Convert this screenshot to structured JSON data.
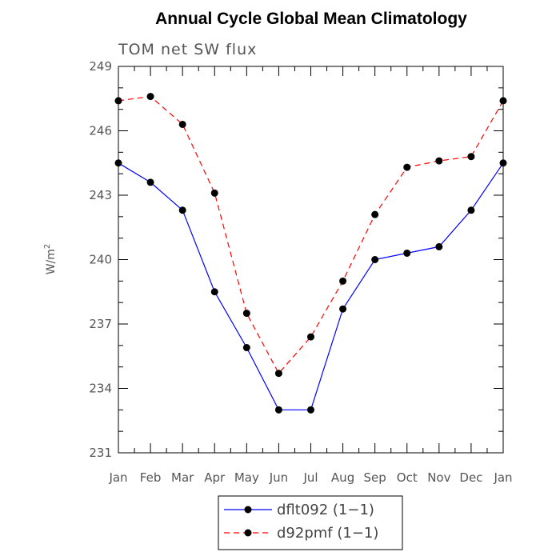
{
  "chart_data": {
    "type": "line",
    "title": "Annual Cycle Global Mean Climatology",
    "subtitle": "TOM net SW flux",
    "ylabel": "W/m",
    "ylabel_superscript": "2",
    "xlabel": "",
    "categories": [
      "Jan",
      "Feb",
      "Mar",
      "Apr",
      "May",
      "Jun",
      "Jul",
      "Aug",
      "Sep",
      "Oct",
      "Nov",
      "Dec",
      "Jan"
    ],
    "ylim": [
      231,
      249
    ],
    "yticks": [
      "231",
      "234",
      "237",
      "240",
      "243",
      "246",
      "249"
    ],
    "legend_position": "bottom",
    "series": [
      {
        "name": "dflt092 (1−1)",
        "color": "#0000ff",
        "dash": "solid",
        "values": [
          244.5,
          243.6,
          242.3,
          238.5,
          235.9,
          233.0,
          233.0,
          237.7,
          240.0,
          240.3,
          240.6,
          242.3,
          244.5
        ]
      },
      {
        "name": "d92pmf (1−1)",
        "color": "#ff0000",
        "dash": "dashed",
        "values": [
          247.4,
          247.6,
          246.3,
          243.1,
          237.5,
          234.7,
          236.4,
          239.0,
          242.1,
          244.3,
          244.6,
          244.8,
          247.4
        ]
      }
    ]
  }
}
